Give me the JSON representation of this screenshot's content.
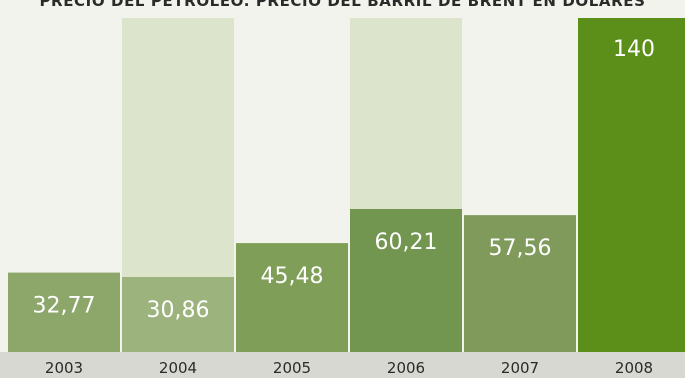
{
  "chart_data": {
    "type": "bar",
    "title": "PRECIO DEL PETRÓLEO. PRECIO DEL BARRIL DE BRENT EN DÓLARES",
    "categories": [
      "2003",
      "2004",
      "2005",
      "2006",
      "2007",
      "2008"
    ],
    "values": [
      32.77,
      30.86,
      45.48,
      60.21,
      57.56,
      140
    ],
    "value_labels": [
      "32,77",
      "30,86",
      "45,48",
      "60,21",
      "57,56",
      "140"
    ],
    "ylim": [
      0,
      140
    ],
    "xlabel": "",
    "ylabel": "",
    "grid": false,
    "legend": "none",
    "colors": {
      "background": "#f3f3ee",
      "column_track_alt": "#dde4cc",
      "bars": [
        "#8da76a",
        "#9db37d",
        "#7f9e57",
        "#729650",
        "#7f9a5a",
        "#5b8f1a"
      ],
      "value_text": "#ffffff",
      "axis_band": "#d8d8d2",
      "axis_text": "#2a2a2a"
    }
  }
}
